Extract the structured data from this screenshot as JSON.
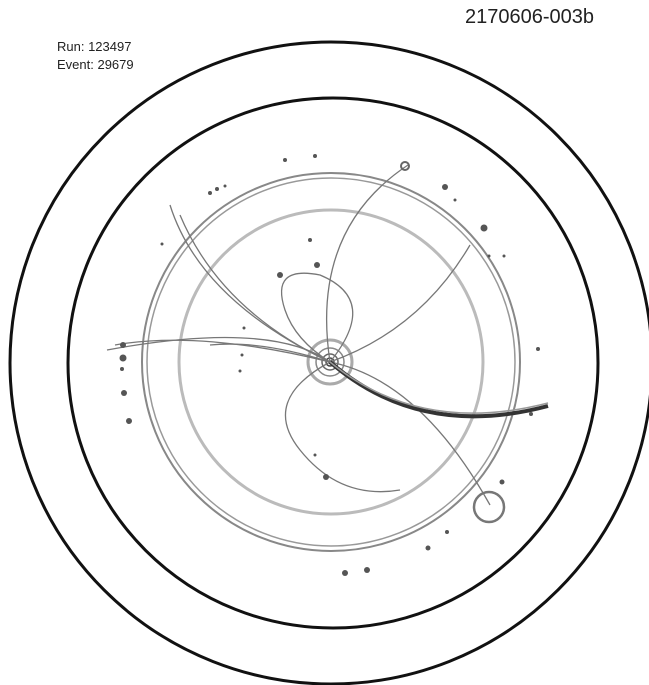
{
  "figure_id": "2170606-003b",
  "run": "Run: 123497",
  "event": "Event: 29679"
}
